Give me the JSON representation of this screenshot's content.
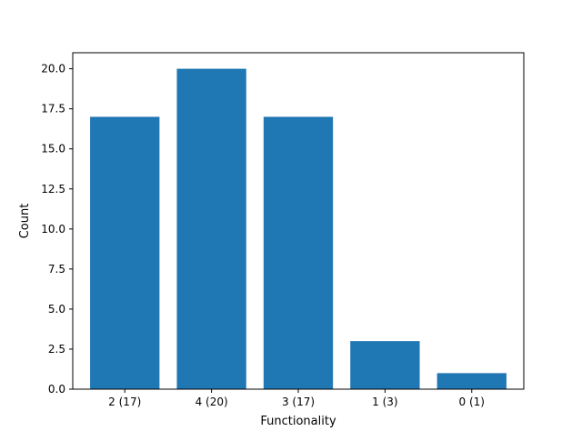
{
  "chart_data": {
    "type": "bar",
    "categories": [
      "2 (17)",
      "4 (20)",
      "3 (17)",
      "1 (3)",
      "0 (1)"
    ],
    "values": [
      17,
      20,
      17,
      3,
      1
    ],
    "title": "",
    "xlabel": "Functionality",
    "ylabel": "Count",
    "ylim": [
      0,
      21
    ],
    "yticks": [
      "0.0",
      "2.5",
      "5.0",
      "7.5",
      "10.0",
      "12.5",
      "15.0",
      "17.5",
      "20.0"
    ],
    "bar_color": "#1f77b4",
    "grid": false,
    "legend": "none"
  }
}
